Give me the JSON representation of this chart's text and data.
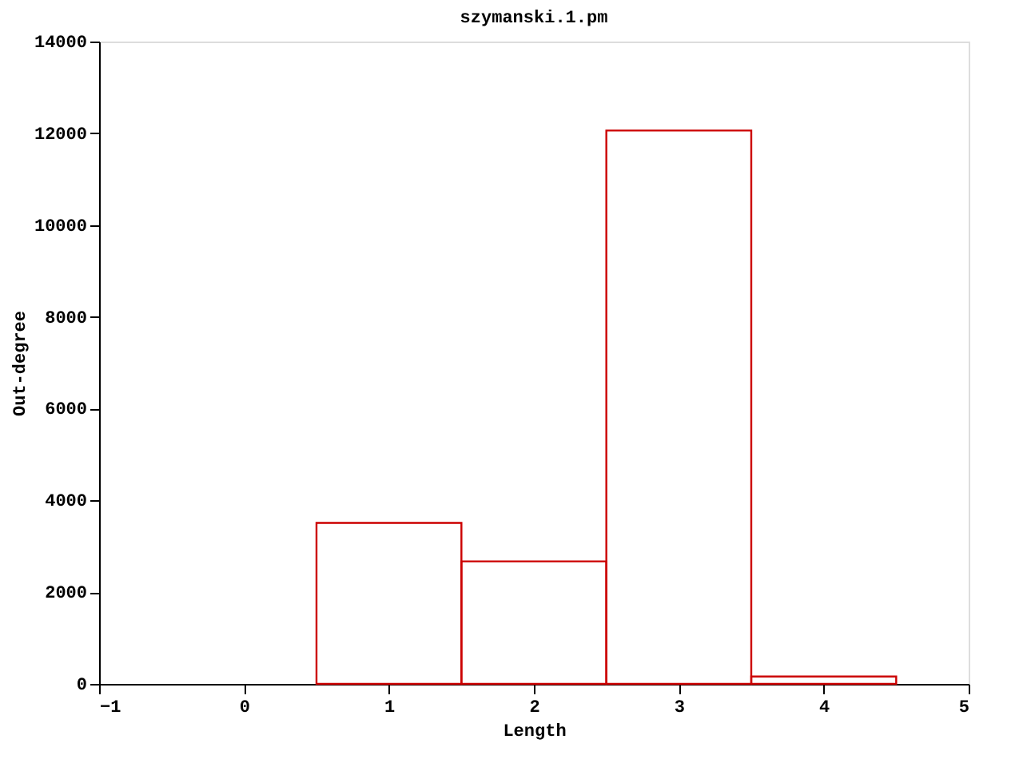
{
  "chart_data": {
    "type": "histogram",
    "title": "szymanski.1.pm",
    "xlabel": "Length",
    "ylabel": "Out-degree",
    "bins": [
      0.5,
      1.5,
      2.5,
      3.5,
      4.5
    ],
    "values": [
      3510,
      2670,
      12060,
      160
    ],
    "color": "#cc0000",
    "xlim": [
      -1,
      5
    ],
    "xticks": [
      -1,
      0,
      1,
      2,
      3,
      4,
      5
    ],
    "ylim": [
      0,
      14000
    ],
    "yticks": [
      0,
      2000,
      4000,
      6000,
      8000,
      10000,
      12000,
      14000
    ],
    "grid": false
  }
}
